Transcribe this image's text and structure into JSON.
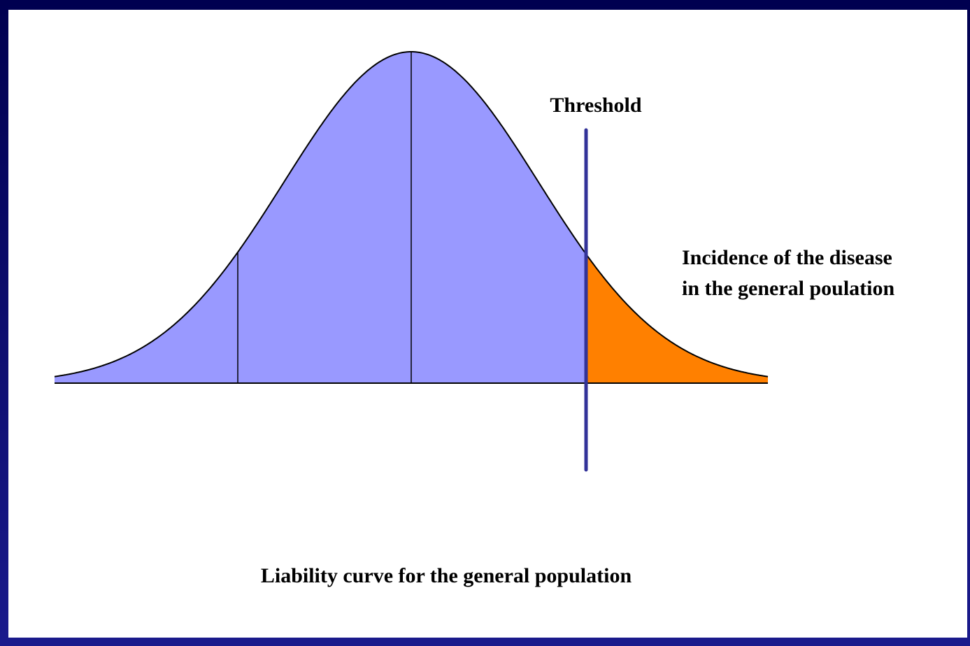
{
  "labels": {
    "threshold": "Threshold",
    "incidence": [
      "Incidence of the disease",
      "in the general poulation"
    ]
  },
  "caption": "Liability curve for the general population"
}
